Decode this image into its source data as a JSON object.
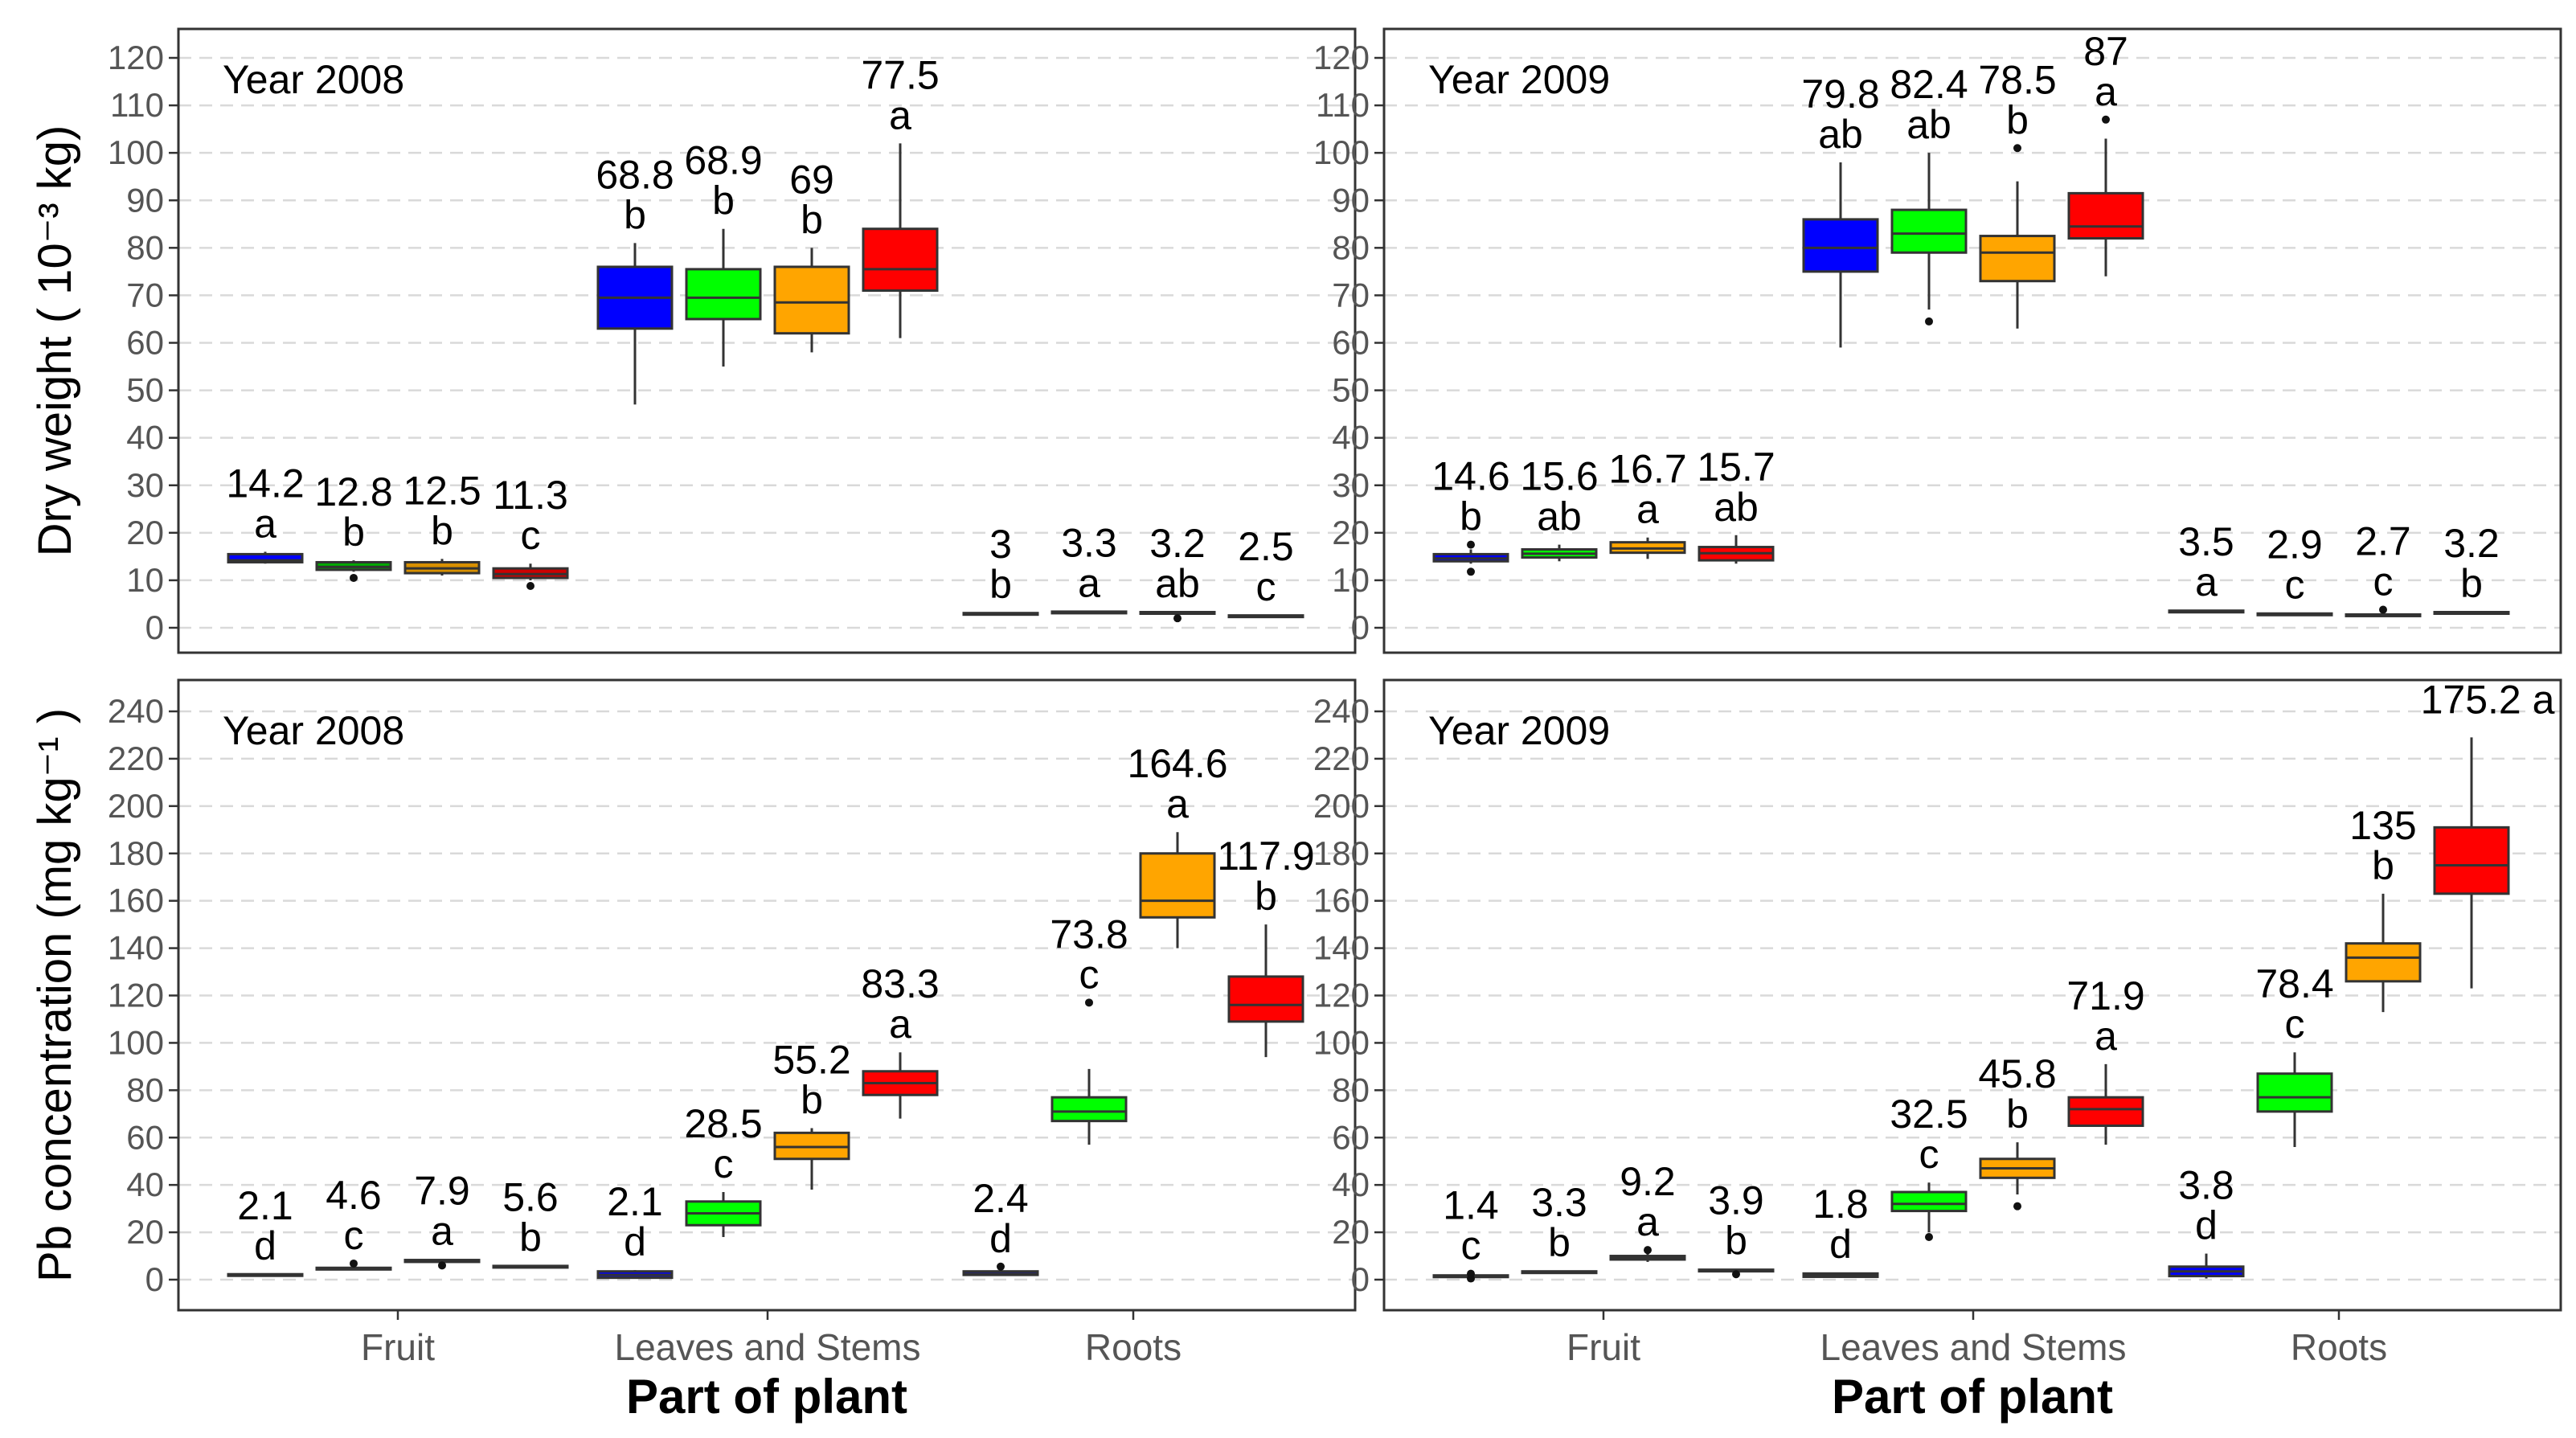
{
  "colors": {
    "series": [
      "#0000ff",
      "#00ff00",
      "#ffa500",
      "#ff0000"
    ],
    "fruit_2008_dry": [
      "#0000ff",
      "#00aa00",
      "#d89000",
      "#cc0000"
    ]
  },
  "chart_data": [
    {
      "type": "box",
      "title": "Year 2008",
      "ylabel": "Dry weight ( 10⁻³ kg)",
      "xlabel": "",
      "categories": [
        "Fruit",
        "Leaves and Stems",
        "Roots"
      ],
      "ylim": [
        -5,
        125
      ],
      "yticks": [
        0,
        10,
        20,
        30,
        40,
        50,
        60,
        70,
        80,
        90,
        100,
        110,
        120
      ],
      "grid": true,
      "boxes": [
        {
          "category": "Fruit",
          "series": 0,
          "min": 13.5,
          "q1": 13.8,
          "median": 14.2,
          "q3": 15.5,
          "max": 16,
          "outliers": [],
          "mean_label": "14.2",
          "letter": "a"
        },
        {
          "category": "Fruit",
          "series": 1,
          "min": 11.8,
          "q1": 12.2,
          "median": 12.8,
          "q3": 13.8,
          "max": 14.2,
          "outliers": [
            10.5
          ],
          "mean_label": "12.8",
          "letter": "b"
        },
        {
          "category": "Fruit",
          "series": 2,
          "min": 11.0,
          "q1": 11.5,
          "median": 12.5,
          "q3": 13.8,
          "max": 14.5,
          "outliers": [],
          "mean_label": "12.5",
          "letter": "b"
        },
        {
          "category": "Fruit",
          "series": 3,
          "min": 10.0,
          "q1": 10.5,
          "median": 11.3,
          "q3": 12.5,
          "max": 13.5,
          "outliers": [
            8.8
          ],
          "mean_label": "11.3",
          "letter": "c"
        },
        {
          "category": "Leaves and Stems",
          "series": 0,
          "min": 47,
          "q1": 63,
          "median": 69.5,
          "q3": 76,
          "max": 81,
          "outliers": [],
          "mean_label": "68.8",
          "letter": "b"
        },
        {
          "category": "Leaves and Stems",
          "series": 1,
          "min": 55,
          "q1": 65,
          "median": 69.5,
          "q3": 75.5,
          "max": 84,
          "outliers": [],
          "mean_label": "68.9",
          "letter": "b"
        },
        {
          "category": "Leaves and Stems",
          "series": 2,
          "min": 58,
          "q1": 62,
          "median": 68.5,
          "q3": 76,
          "max": 80,
          "outliers": [],
          "mean_label": "69",
          "letter": "b"
        },
        {
          "category": "Leaves and Stems",
          "series": 3,
          "min": 61,
          "q1": 71,
          "median": 75.5,
          "q3": 84,
          "max": 102,
          "outliers": [],
          "mean_label": "77.5",
          "letter": "a"
        },
        {
          "category": "Roots",
          "series": 0,
          "min": 2.8,
          "q1": 2.9,
          "median": 3.0,
          "q3": 3.1,
          "max": 3.2,
          "outliers": [],
          "mean_label": "3",
          "letter": "b"
        },
        {
          "category": "Roots",
          "series": 1,
          "min": 3.1,
          "q1": 3.2,
          "median": 3.3,
          "q3": 3.4,
          "max": 3.5,
          "outliers": [],
          "mean_label": "3.3",
          "letter": "a"
        },
        {
          "category": "Roots",
          "series": 2,
          "min": 3.0,
          "q1": 3.1,
          "median": 3.2,
          "q3": 3.3,
          "max": 3.4,
          "outliers": [
            2.0
          ],
          "mean_label": "3.2",
          "letter": "ab"
        },
        {
          "category": "Roots",
          "series": 3,
          "min": 2.3,
          "q1": 2.4,
          "median": 2.5,
          "q3": 2.6,
          "max": 2.7,
          "outliers": [],
          "mean_label": "2.5",
          "letter": "c"
        }
      ]
    },
    {
      "type": "box",
      "title": "Year 2009",
      "ylabel": "",
      "xlabel": "",
      "categories": [
        "Fruit",
        "Leaves and Stems",
        "Roots"
      ],
      "ylim": [
        -5,
        125
      ],
      "yticks": [
        0,
        10,
        20,
        30,
        40,
        50,
        60,
        70,
        80,
        90,
        100,
        110,
        120
      ],
      "grid": true,
      "boxes": [
        {
          "category": "Fruit",
          "series": 0,
          "min": 13.5,
          "q1": 14.0,
          "median": 14.6,
          "q3": 15.5,
          "max": 16.5,
          "outliers": [
            17.5,
            11.8
          ],
          "mean_label": "14.6",
          "letter": "b"
        },
        {
          "category": "Fruit",
          "series": 1,
          "min": 14.0,
          "q1": 14.8,
          "median": 15.6,
          "q3": 16.5,
          "max": 17.5,
          "outliers": [],
          "mean_label": "15.6",
          "letter": "ab"
        },
        {
          "category": "Fruit",
          "series": 2,
          "min": 14.5,
          "q1": 15.8,
          "median": 16.7,
          "q3": 18.0,
          "max": 19.0,
          "outliers": [],
          "mean_label": "16.7",
          "letter": "a"
        },
        {
          "category": "Fruit",
          "series": 3,
          "min": 13.5,
          "q1": 14.2,
          "median": 15.7,
          "q3": 17.0,
          "max": 19.5,
          "outliers": [],
          "mean_label": "15.7",
          "letter": "ab"
        },
        {
          "category": "Leaves and Stems",
          "series": 0,
          "min": 59,
          "q1": 75,
          "median": 80,
          "q3": 86,
          "max": 98,
          "outliers": [],
          "mean_label": "79.8",
          "letter": "ab"
        },
        {
          "category": "Leaves and Stems",
          "series": 1,
          "min": 67,
          "q1": 79,
          "median": 83,
          "q3": 88,
          "max": 100,
          "outliers": [
            64.5
          ],
          "mean_label": "82.4",
          "letter": "ab"
        },
        {
          "category": "Leaves and Stems",
          "series": 2,
          "min": 63,
          "q1": 73,
          "median": 79,
          "q3": 82.5,
          "max": 94,
          "outliers": [
            101
          ],
          "mean_label": "78.5",
          "letter": "b"
        },
        {
          "category": "Leaves and Stems",
          "series": 3,
          "min": 74,
          "q1": 82,
          "median": 84.5,
          "q3": 91.5,
          "max": 103,
          "outliers": [
            107
          ],
          "mean_label": "87",
          "letter": "a"
        },
        {
          "category": "Roots",
          "series": 0,
          "min": 3.3,
          "q1": 3.4,
          "median": 3.5,
          "q3": 3.6,
          "max": 3.7,
          "outliers": [],
          "mean_label": "3.5",
          "letter": "a"
        },
        {
          "category": "Roots",
          "series": 1,
          "min": 2.7,
          "q1": 2.8,
          "median": 2.9,
          "q3": 3.0,
          "max": 3.1,
          "outliers": [],
          "mean_label": "2.9",
          "letter": "c"
        },
        {
          "category": "Roots",
          "series": 2,
          "min": 2.5,
          "q1": 2.6,
          "median": 2.7,
          "q3": 2.8,
          "max": 2.9,
          "outliers": [
            3.8
          ],
          "mean_label": "2.7",
          "letter": "c"
        },
        {
          "category": "Roots",
          "series": 3,
          "min": 3.0,
          "q1": 3.1,
          "median": 3.2,
          "q3": 3.3,
          "max": 3.4,
          "outliers": [],
          "mean_label": "3.2",
          "letter": "b"
        }
      ]
    },
    {
      "type": "box",
      "title": "Year 2008",
      "ylabel": "Pb concentration (mg  kg⁻¹ )",
      "xlabel": "Part of plant",
      "categories": [
        "Fruit",
        "Leaves and Stems",
        "Roots"
      ],
      "ylim": [
        -10,
        250
      ],
      "yticks": [
        0,
        20,
        40,
        60,
        80,
        100,
        120,
        140,
        160,
        180,
        200,
        220,
        240
      ],
      "grid": true,
      "boxes": [
        {
          "category": "Fruit",
          "series": 0,
          "min": 1.8,
          "q1": 1.9,
          "median": 2.1,
          "q3": 2.3,
          "max": 2.4,
          "outliers": [],
          "mean_label": "2.1",
          "letter": "d"
        },
        {
          "category": "Fruit",
          "series": 1,
          "min": 4.0,
          "q1": 4.3,
          "median": 4.6,
          "q3": 5.0,
          "max": 5.3,
          "outliers": [
            6.8
          ],
          "mean_label": "4.6",
          "letter": "c"
        },
        {
          "category": "Fruit",
          "series": 2,
          "min": 7.2,
          "q1": 7.5,
          "median": 7.9,
          "q3": 8.3,
          "max": 8.6,
          "outliers": [
            6.0
          ],
          "mean_label": "7.9",
          "letter": "a"
        },
        {
          "category": "Fruit",
          "series": 3,
          "min": 5.2,
          "q1": 5.4,
          "median": 5.6,
          "q3": 5.8,
          "max": 6.0,
          "outliers": [],
          "mean_label": "5.6",
          "letter": "b"
        },
        {
          "category": "Leaves and Stems",
          "series": 0,
          "min": 0.5,
          "q1": 0.8,
          "median": 2.0,
          "q3": 3.5,
          "max": 4.0,
          "outliers": [],
          "mean_label": "2.1",
          "letter": "d"
        },
        {
          "category": "Leaves and Stems",
          "series": 1,
          "min": 18,
          "q1": 23,
          "median": 28,
          "q3": 33,
          "max": 37,
          "outliers": [],
          "mean_label": "28.5",
          "letter": "c"
        },
        {
          "category": "Leaves and Stems",
          "series": 2,
          "min": 38,
          "q1": 51,
          "median": 56,
          "q3": 62,
          "max": 64,
          "outliers": [],
          "mean_label": "55.2",
          "letter": "b"
        },
        {
          "category": "Leaves and Stems",
          "series": 3,
          "min": 68,
          "q1": 78,
          "median": 83,
          "q3": 88,
          "max": 96,
          "outliers": [],
          "mean_label": "83.3",
          "letter": "a"
        },
        {
          "category": "Roots",
          "series": 0,
          "min": 1.8,
          "q1": 2.0,
          "median": 2.4,
          "q3": 3.5,
          "max": 4.0,
          "outliers": [
            5.5
          ],
          "mean_label": "2.4",
          "letter": "d"
        },
        {
          "category": "Roots",
          "series": 1,
          "min": 57,
          "q1": 67,
          "median": 71,
          "q3": 77,
          "max": 89,
          "outliers": [
            117
          ],
          "mean_label": "73.8",
          "letter": "c"
        },
        {
          "category": "Roots",
          "series": 2,
          "min": 140,
          "q1": 153,
          "median": 160,
          "q3": 180,
          "max": 189,
          "outliers": [],
          "mean_label": "164.6",
          "letter": "a"
        },
        {
          "category": "Roots",
          "series": 3,
          "min": 94,
          "q1": 109,
          "median": 116,
          "q3": 128,
          "max": 150,
          "outliers": [],
          "mean_label": "117.9",
          "letter": "b"
        }
      ]
    },
    {
      "type": "box",
      "title": "Year 2009",
      "ylabel": "",
      "xlabel": "Part of plant",
      "categories": [
        "Fruit",
        "Leaves and Stems",
        "Roots"
      ],
      "ylim": [
        -10,
        250
      ],
      "yticks": [
        0,
        20,
        40,
        60,
        80,
        100,
        120,
        140,
        160,
        180,
        200,
        220,
        240
      ],
      "grid": true,
      "boxes": [
        {
          "category": "Fruit",
          "series": 0,
          "min": 0.8,
          "q1": 1.1,
          "median": 1.4,
          "q3": 1.8,
          "max": 2.2,
          "outliers": [
            0.5,
            2.5
          ],
          "mean_label": "1.4",
          "letter": "c"
        },
        {
          "category": "Fruit",
          "series": 1,
          "min": 2.9,
          "q1": 3.1,
          "median": 3.3,
          "q3": 3.5,
          "max": 3.7,
          "outliers": [],
          "mean_label": "3.3",
          "letter": "b"
        },
        {
          "category": "Fruit",
          "series": 2,
          "min": 7.5,
          "q1": 8.5,
          "median": 9.2,
          "q3": 10.0,
          "max": 11.0,
          "outliers": [
            12.5
          ],
          "mean_label": "9.2",
          "letter": "a"
        },
        {
          "category": "Fruit",
          "series": 3,
          "min": 3.4,
          "q1": 3.7,
          "median": 3.9,
          "q3": 4.2,
          "max": 4.5,
          "outliers": [
            2.3
          ],
          "mean_label": "3.9",
          "letter": "b"
        },
        {
          "category": "Leaves and Stems",
          "series": 0,
          "min": 0.8,
          "q1": 1.2,
          "median": 1.8,
          "q3": 2.6,
          "max": 3.0,
          "outliers": [],
          "mean_label": "1.8",
          "letter": "d"
        },
        {
          "category": "Leaves and Stems",
          "series": 1,
          "min": 20,
          "q1": 29,
          "median": 32,
          "q3": 37,
          "max": 41,
          "outliers": [
            18
          ],
          "mean_label": "32.5",
          "letter": "c"
        },
        {
          "category": "Leaves and Stems",
          "series": 2,
          "min": 36,
          "q1": 43,
          "median": 47,
          "q3": 51,
          "max": 58,
          "outliers": [
            31
          ],
          "mean_label": "45.8",
          "letter": "b"
        },
        {
          "category": "Leaves and Stems",
          "series": 3,
          "min": 57,
          "q1": 65,
          "median": 72,
          "q3": 77,
          "max": 91,
          "outliers": [],
          "mean_label": "71.9",
          "letter": "a"
        },
        {
          "category": "Roots",
          "series": 0,
          "min": 0.5,
          "q1": 1.5,
          "median": 3.5,
          "q3": 5.5,
          "max": 11,
          "outliers": [],
          "mean_label": "3.8",
          "letter": "d"
        },
        {
          "category": "Roots",
          "series": 1,
          "min": 56,
          "q1": 71,
          "median": 77,
          "q3": 87,
          "max": 96,
          "outliers": [],
          "mean_label": "78.4",
          "letter": "c"
        },
        {
          "category": "Roots",
          "series": 2,
          "min": 113,
          "q1": 126,
          "median": 136,
          "q3": 142,
          "max": 163,
          "outliers": [],
          "mean_label": "135",
          "letter": "b"
        },
        {
          "category": "Roots",
          "series": 3,
          "min": 123,
          "q1": 163,
          "median": 175,
          "q3": 191,
          "max": 229,
          "outliers": [],
          "mean_label": "175.2",
          "letter": "a"
        }
      ]
    }
  ]
}
